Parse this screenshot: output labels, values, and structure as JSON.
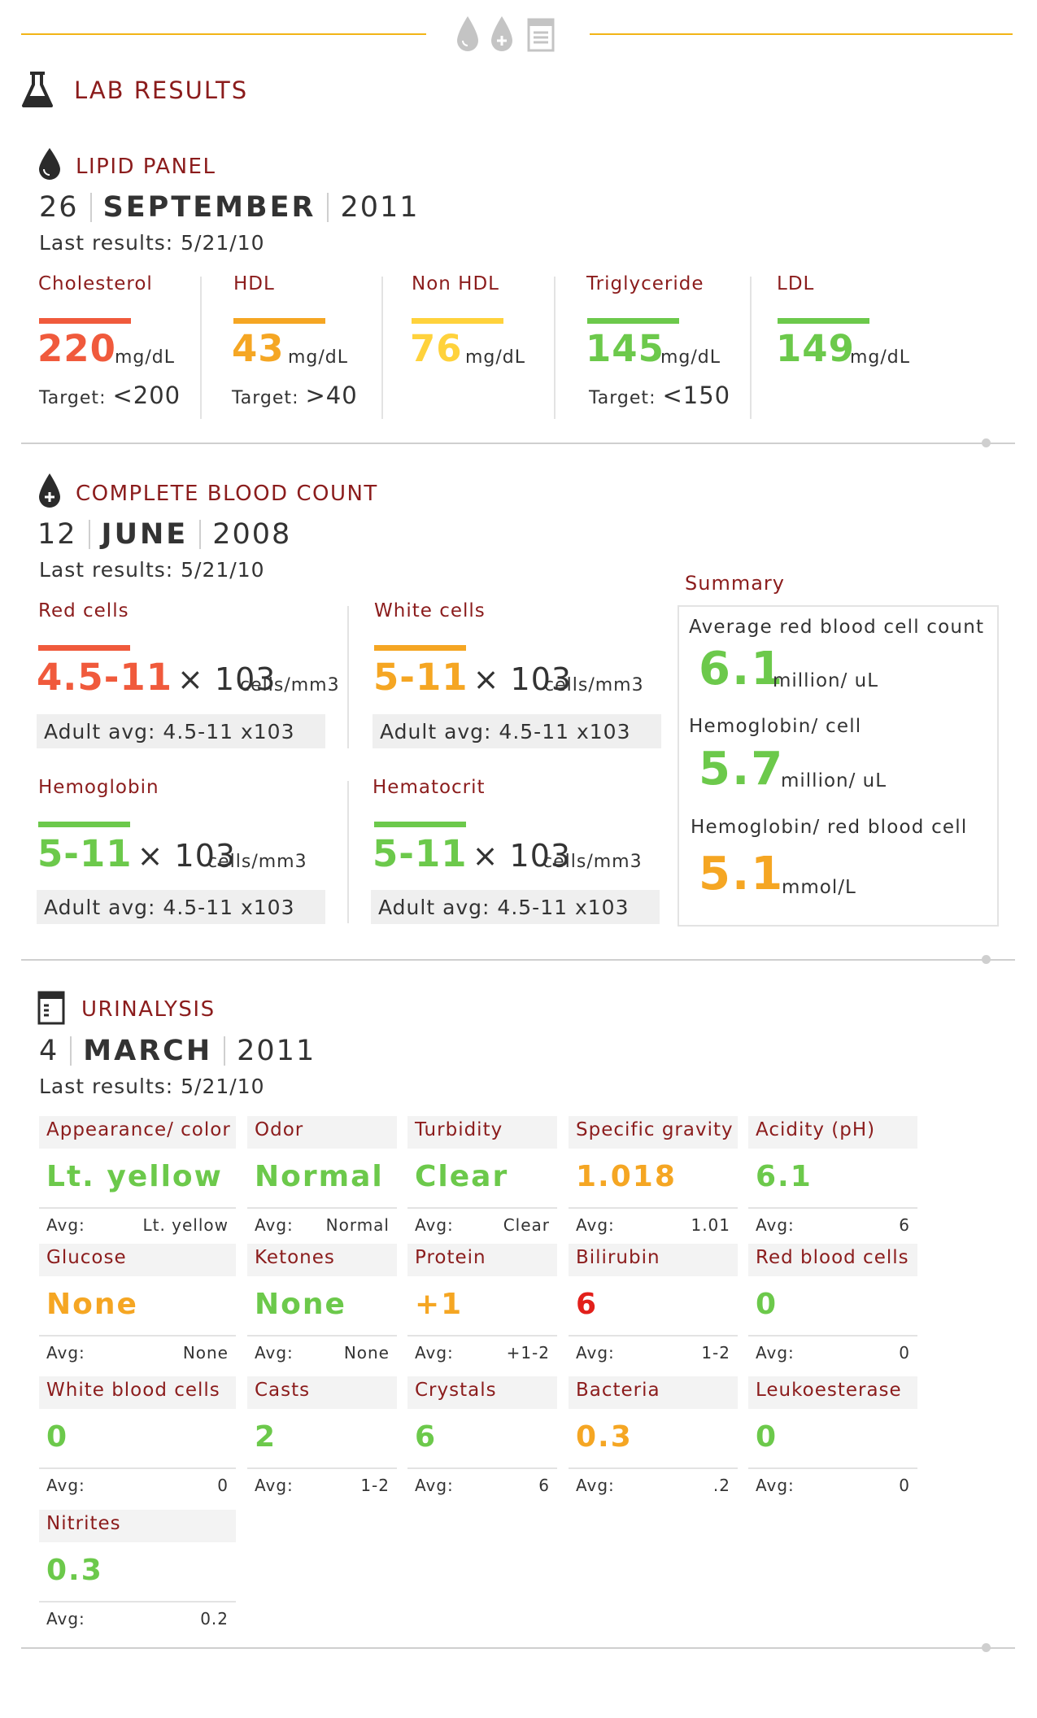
{
  "header": {
    "title": "LAB RESULTS",
    "icons": [
      "drop-icon",
      "drop-plus-icon",
      "beaker-icon",
      "flask-icon"
    ]
  },
  "colors": {
    "maroon": "#8b1c1c",
    "red": "#f05a3c",
    "orange": "#f5a623",
    "yellow": "#ffd23c",
    "green": "#6cc94b",
    "crimson": "#e2201b",
    "gold_line": "#f2b416"
  },
  "lipid": {
    "title": "LIPID PANEL",
    "date": {
      "day": "26",
      "month": "SEPTEMBER",
      "year": "2011"
    },
    "last_results": "Last results: 5/21/10",
    "items": [
      {
        "label": "Cholesterol",
        "value": "220",
        "unit": "mg/dL",
        "target_label": "Target:",
        "target": "<200",
        "color": "#f05a3c"
      },
      {
        "label": "HDL",
        "value": "43",
        "unit": "mg/dL",
        "target_label": "Target:",
        "target": ">40",
        "color": "#f5a623"
      },
      {
        "label": "Non HDL",
        "value": "76",
        "unit": "mg/dL",
        "target_label": "",
        "target": "",
        "color": "#ffd23c"
      },
      {
        "label": "Triglyceride",
        "value": "145",
        "unit": "mg/dL",
        "target_label": "Target:",
        "target": "<150",
        "color": "#6cc94b"
      },
      {
        "label": "LDL",
        "value": "149",
        "unit": "mg/dL",
        "target_label": "",
        "target": "",
        "color": "#6cc94b"
      }
    ]
  },
  "cbc": {
    "title": "COMPLETE BLOOD COUNT",
    "date": {
      "day": "12",
      "month": "JUNE",
      "year": "2008"
    },
    "last_results": "Last results: 5/21/10",
    "items": [
      {
        "label": "Red cells",
        "value": "4.5-11",
        "times": "× 103",
        "unit": "cells/mm3",
        "avg": "Adult avg:  4.5-11 x103",
        "color": "#f05a3c"
      },
      {
        "label": "White cells",
        "value": "5-11",
        "times": "× 103",
        "unit": "cells/mm3",
        "avg": "Adult avg:  4.5-11 x103",
        "color": "#f5a623"
      },
      {
        "label": "Hemoglobin",
        "value": "5-11",
        "times": "× 103",
        "unit": "cells/mm3",
        "avg": "Adult avg:  4.5-11 x103",
        "color": "#6cc94b"
      },
      {
        "label": "Hematocrit",
        "value": "5-11",
        "times": "× 103",
        "unit": "cells/mm3",
        "avg": "Adult avg:  4.5-11 x103",
        "color": "#6cc94b"
      }
    ],
    "summary": {
      "title": "Summary",
      "rows": [
        {
          "label": "Average red blood cell count",
          "value": "6.1",
          "unit": "million/ uL",
          "color": "#6cc94b"
        },
        {
          "label": "Hemoglobin/ cell",
          "value": "5.7",
          "unit": "million/ uL",
          "color": "#6cc94b"
        },
        {
          "label": "Hemoglobin/ red blood cell",
          "value": "5.1",
          "unit": "mmol/L",
          "color": "#f5a623"
        }
      ]
    }
  },
  "urinalysis": {
    "title": "URINALYSIS",
    "date": {
      "day": "4",
      "month": "MARCH",
      "year": "2011"
    },
    "last_results": "Last results: 5/21/10",
    "avg_label": "Avg:",
    "items": [
      {
        "label": "Appearance/ color",
        "value": "Lt. yellow",
        "avg": "Lt. yellow",
        "color": "#6cc94b"
      },
      {
        "label": "Odor",
        "value": "Normal",
        "avg": "Normal",
        "color": "#6cc94b"
      },
      {
        "label": "Turbidity",
        "value": "Clear",
        "avg": "Clear",
        "color": "#6cc94b"
      },
      {
        "label": "Specific gravity",
        "value": "1.018",
        "avg": "1.01",
        "color": "#f5a623"
      },
      {
        "label": "Acidity (pH)",
        "value": "6.1",
        "avg": "6",
        "color": "#6cc94b"
      },
      {
        "label": "Glucose",
        "value": "None",
        "avg": "None",
        "color": "#f5a623"
      },
      {
        "label": "Ketones",
        "value": "None",
        "avg": "None",
        "color": "#6cc94b"
      },
      {
        "label": "Protein",
        "value": "+1",
        "avg": "+1-2",
        "color": "#f5a623"
      },
      {
        "label": "Bilirubin",
        "value": "6",
        "avg": "1-2",
        "color": "#e2201b"
      },
      {
        "label": "Red blood cells",
        "value": "0",
        "avg": "0",
        "color": "#6cc94b"
      },
      {
        "label": "White blood cells",
        "value": "0",
        "avg": "0",
        "color": "#6cc94b"
      },
      {
        "label": "Casts",
        "value": "2",
        "avg": "1-2",
        "color": "#6cc94b"
      },
      {
        "label": "Crystals",
        "value": "6",
        "avg": "6",
        "color": "#6cc94b"
      },
      {
        "label": "Bacteria",
        "value": "0.3",
        "avg": ".2",
        "color": "#f5a623"
      },
      {
        "label": "Leukoesterase",
        "value": "0",
        "avg": "0",
        "color": "#6cc94b"
      },
      {
        "label": "Nitrites",
        "value": "0.3",
        "avg": "0.2",
        "color": "#6cc94b"
      }
    ]
  }
}
